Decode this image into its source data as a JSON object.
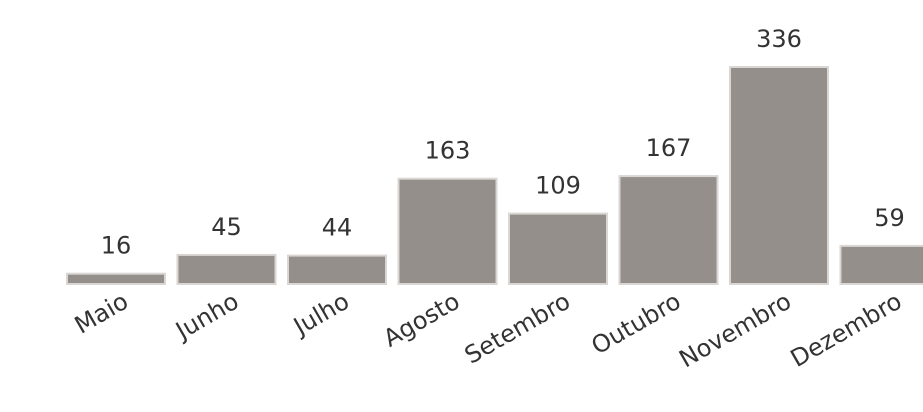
{
  "chart_data": {
    "type": "bar",
    "categories": [
      "Maio",
      "Junho",
      "Julho",
      "Agosto",
      "Setembro",
      "Outubro",
      "Novembro",
      "Dezembro"
    ],
    "values": [
      16,
      45,
      44,
      163,
      109,
      167,
      336,
      59
    ],
    "title": "",
    "xlabel": "",
    "ylabel": "",
    "ylim": [
      0,
      336
    ],
    "grid": false,
    "show_data_labels": true,
    "bar_color": "#958f8b",
    "bar_edge_color": "#d9d6d3",
    "text_color": "#333333"
  }
}
